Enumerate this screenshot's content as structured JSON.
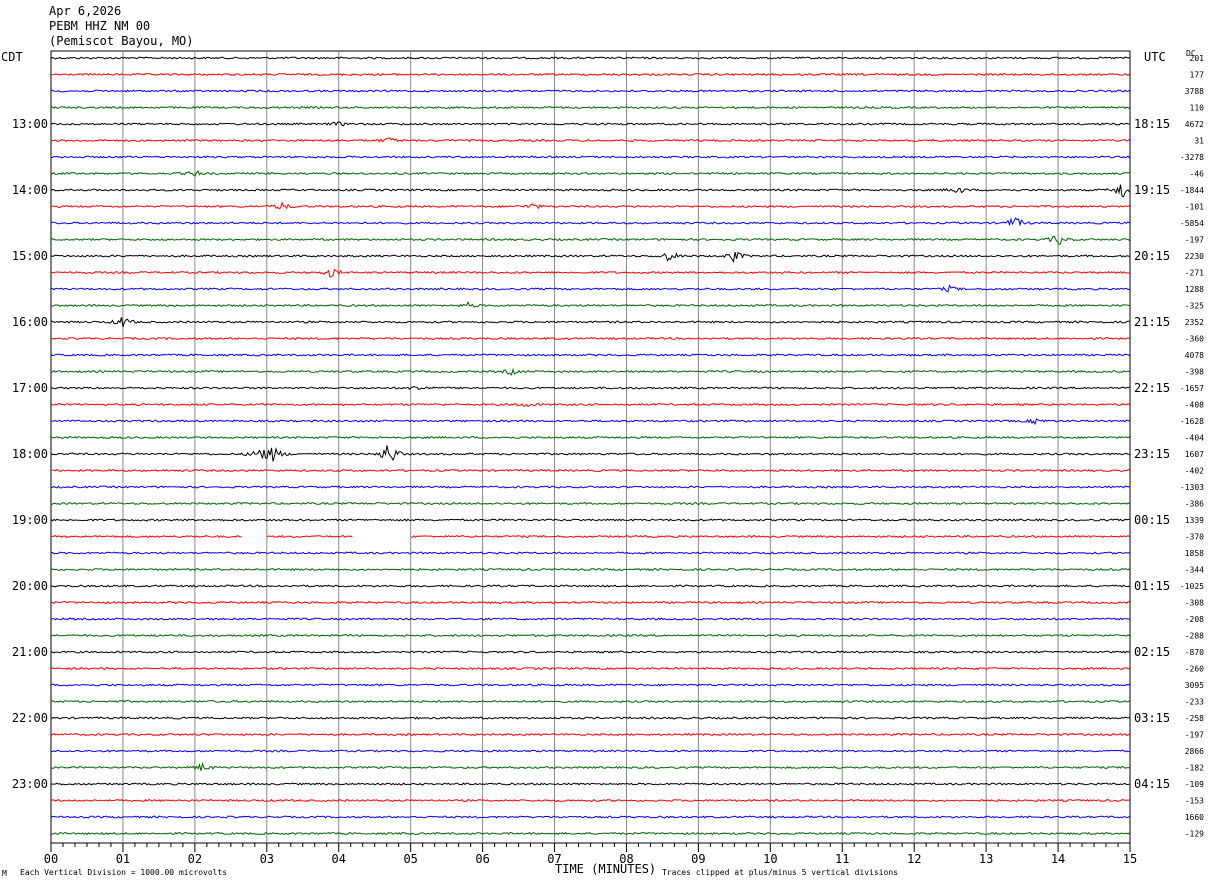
{
  "header": {
    "date": "Apr 6,2026",
    "station": "PEBM HHZ NM 00",
    "location": "(Pemiscot Bayou, MO)"
  },
  "left_tz": "CDT",
  "right_tz": "UTC",
  "dc_label": "DC",
  "footer": {
    "scale_note": "Each Vertical Division = 1000.00 microvolts",
    "clip_note": "Traces clipped at plus/minus 5 vertical divisions",
    "corner_mark": "M"
  },
  "chart_data": {
    "type": "line",
    "title": "",
    "xlabel": "TIME (MINUTES)",
    "x_ticks": [
      "00",
      "01",
      "02",
      "03",
      "04",
      "05",
      "06",
      "07",
      "08",
      "09",
      "10",
      "11",
      "12",
      "13",
      "14",
      "15"
    ],
    "xlim": [
      0,
      15
    ],
    "trace_colors": [
      "#000000",
      "#ff0000",
      "#0000ff",
      "#006400"
    ],
    "trace_count": 48,
    "grid": true,
    "left_hour_labels": [
      "13:00",
      "14:00",
      "15:00",
      "16:00",
      "17:00",
      "18:00",
      "19:00",
      "20:00",
      "21:00",
      "22:00",
      "23:00"
    ],
    "right_hour_labels": [
      "18:15",
      "19:15",
      "20:15",
      "21:15",
      "22:15",
      "23:15",
      "00:15",
      "01:15",
      "02:15",
      "03:15",
      "04:15"
    ],
    "dc_offsets": [
      "201",
      "177",
      "3788",
      "110",
      "4672",
      "31",
      "-3278",
      "-46",
      "-1844",
      "-101",
      "-5854",
      "-197",
      "2230",
      "-271",
      "1288",
      "-325",
      "2352",
      "-360",
      "4078",
      "-398",
      "-1657",
      "-408",
      "-1628",
      "-404",
      "1607",
      "-402",
      "-1303",
      "-386",
      "1339",
      "-370",
      "1858",
      "-344",
      "-1025",
      "-308",
      "-208",
      "-288",
      "-870",
      "-260",
      "3095",
      "-233",
      "-258",
      "-197",
      "2866",
      "-182",
      "-109",
      "-153",
      "1660",
      "-129"
    ],
    "events": [
      {
        "trace": 4,
        "minute": 4.0,
        "amplitude": 2
      },
      {
        "trace": 5,
        "minute": 4.7,
        "amplitude": 3
      },
      {
        "trace": 7,
        "minute": 2.0,
        "amplitude": 3
      },
      {
        "trace": 8,
        "minute": 12.6,
        "amplitude": 4
      },
      {
        "trace": 8,
        "minute": 14.9,
        "amplitude": 10
      },
      {
        "trace": 9,
        "minute": 3.2,
        "amplitude": 4
      },
      {
        "trace": 9,
        "minute": 6.7,
        "amplitude": 3
      },
      {
        "trace": 10,
        "minute": 13.4,
        "amplitude": 7
      },
      {
        "trace": 11,
        "minute": 14.0,
        "amplitude": 6
      },
      {
        "trace": 12,
        "minute": 8.6,
        "amplitude": 6
      },
      {
        "trace": 12,
        "minute": 9.5,
        "amplitude": 6
      },
      {
        "trace": 13,
        "minute": 3.9,
        "amplitude": 5
      },
      {
        "trace": 14,
        "minute": 12.5,
        "amplitude": 3
      },
      {
        "trace": 15,
        "minute": 5.8,
        "amplitude": 3
      },
      {
        "trace": 16,
        "minute": 1.0,
        "amplitude": 6
      },
      {
        "trace": 19,
        "minute": 6.4,
        "amplitude": 3
      },
      {
        "trace": 20,
        "minute": 5.1,
        "amplitude": 3
      },
      {
        "trace": 21,
        "minute": 6.6,
        "amplitude": 3
      },
      {
        "trace": 22,
        "minute": 13.7,
        "amplitude": 3
      },
      {
        "trace": 24,
        "minute": 2.9,
        "amplitude": 8
      },
      {
        "trace": 24,
        "minute": 3.1,
        "amplitude": 8
      },
      {
        "trace": 24,
        "minute": 4.7,
        "amplitude": 14
      },
      {
        "trace": 43,
        "minute": 2.1,
        "amplitude": 4
      }
    ],
    "gaps": [
      {
        "trace": 29,
        "from": 2.65,
        "to": 3.0
      },
      {
        "trace": 29,
        "from": 4.2,
        "to": 5.0
      }
    ]
  }
}
